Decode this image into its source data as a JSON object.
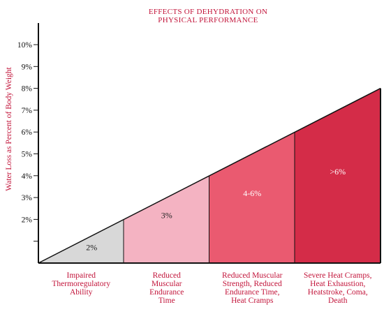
{
  "chart_data": {
    "type": "area",
    "title_lines": [
      "EFFECTS OF DEHYDRATION ON",
      "PHYSICAL PERFORMANCE"
    ],
    "ylabel": "Water Loss as Percent of Body Weight",
    "y_tick_labels": [
      "2%",
      "3%",
      "4%",
      "5%",
      "6%",
      "7%",
      "8%",
      "9%",
      "10%"
    ],
    "y_ticks": [
      2,
      3,
      4,
      5,
      6,
      7,
      8,
      9,
      10
    ],
    "ylim": [
      0,
      10.8
    ],
    "line_end_value": 8,
    "segments": [
      {
        "label": "2%",
        "top": 2,
        "category": [
          "Impaired",
          "Thermoregulatory",
          "Ability"
        ],
        "fill": "#d8d8d8",
        "text_color": "#222222"
      },
      {
        "label": "3%",
        "top": 4,
        "category": [
          "Reduced",
          "Muscular",
          "Endurance",
          "Time"
        ],
        "fill": "#f4b3c2",
        "text_color": "#222222"
      },
      {
        "label": "4-6%",
        "top": 6,
        "category": [
          "Reduced Muscular",
          "Strength, Reduced",
          "Endurance Time,",
          "Heat Cramps"
        ],
        "fill": "#ea5a70",
        "text_color": "#ffffff"
      },
      {
        "label": ">6%",
        "top": 8,
        "category": [
          "Severe Heat Cramps,",
          "Heat Exhaustion,",
          "Heatstroke, Coma,",
          "Death"
        ],
        "fill": "#d42c48",
        "text_color": "#ffffff"
      }
    ]
  }
}
